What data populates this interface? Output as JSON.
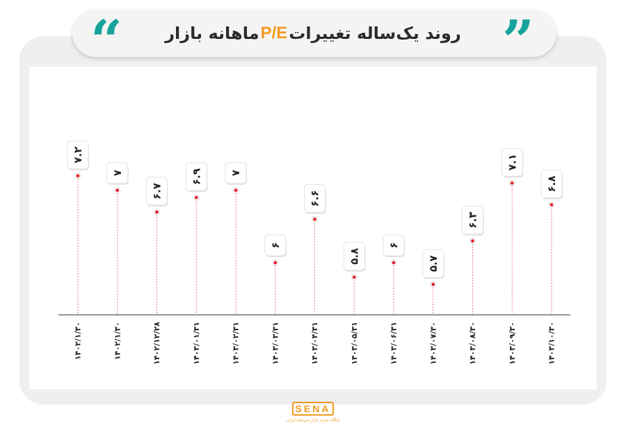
{
  "title": {
    "main": "روند یک‌ساله تغییرات",
    "accent": "P/E",
    "tail": "ماهانه بازار"
  },
  "logo": {
    "word": "SENA",
    "tagline": "پایگاه خبری بازار سرمایه ایران"
  },
  "colors": {
    "accent": "#f39a1f",
    "teal": "#18a39a",
    "point": "#e0232b",
    "leader": "#e4747a",
    "axis": "#555555"
  },
  "chart_data": {
    "type": "scatter",
    "categories": [
      "۱۴۰۲/۱/۳۰",
      "۱۴۰۲/۱/۳۰",
      "۱۴۰۲/۱۲/۲۸",
      "۱۴۰۳/۰۱/۳۱",
      "۱۴۰۳/۰۲/۳۱",
      "۱۴۰۳/۰۳/۳۱",
      "۱۴۰۳/۰۴/۳۱",
      "۱۴۰۳/۰۵/۳۱",
      "۱۴۰۳/۰۶/۳۱",
      "۱۴۰۳/۰۷/۳۰",
      "۱۴۰۳/۰۸/۳۰",
      "۱۴۰۳/۰۹/۳۰",
      "۱۴۰۳/۱۰/۳۰"
    ],
    "values": [
      7.2,
      7,
      6.7,
      6.9,
      7,
      6,
      6.6,
      5.8,
      6,
      5.7,
      6.3,
      7.1,
      6.8
    ],
    "labels": [
      "۷.۲",
      "۷",
      "۶.۷",
      "۶.۹",
      "۷",
      "۶",
      "۶.۶",
      "۵.۸",
      "۶",
      "۵.۷",
      "۶.۳",
      "۷.۱",
      "۶.۸"
    ],
    "ylim": [
      5.5,
      7.4
    ],
    "grid": false,
    "legend": "none"
  }
}
